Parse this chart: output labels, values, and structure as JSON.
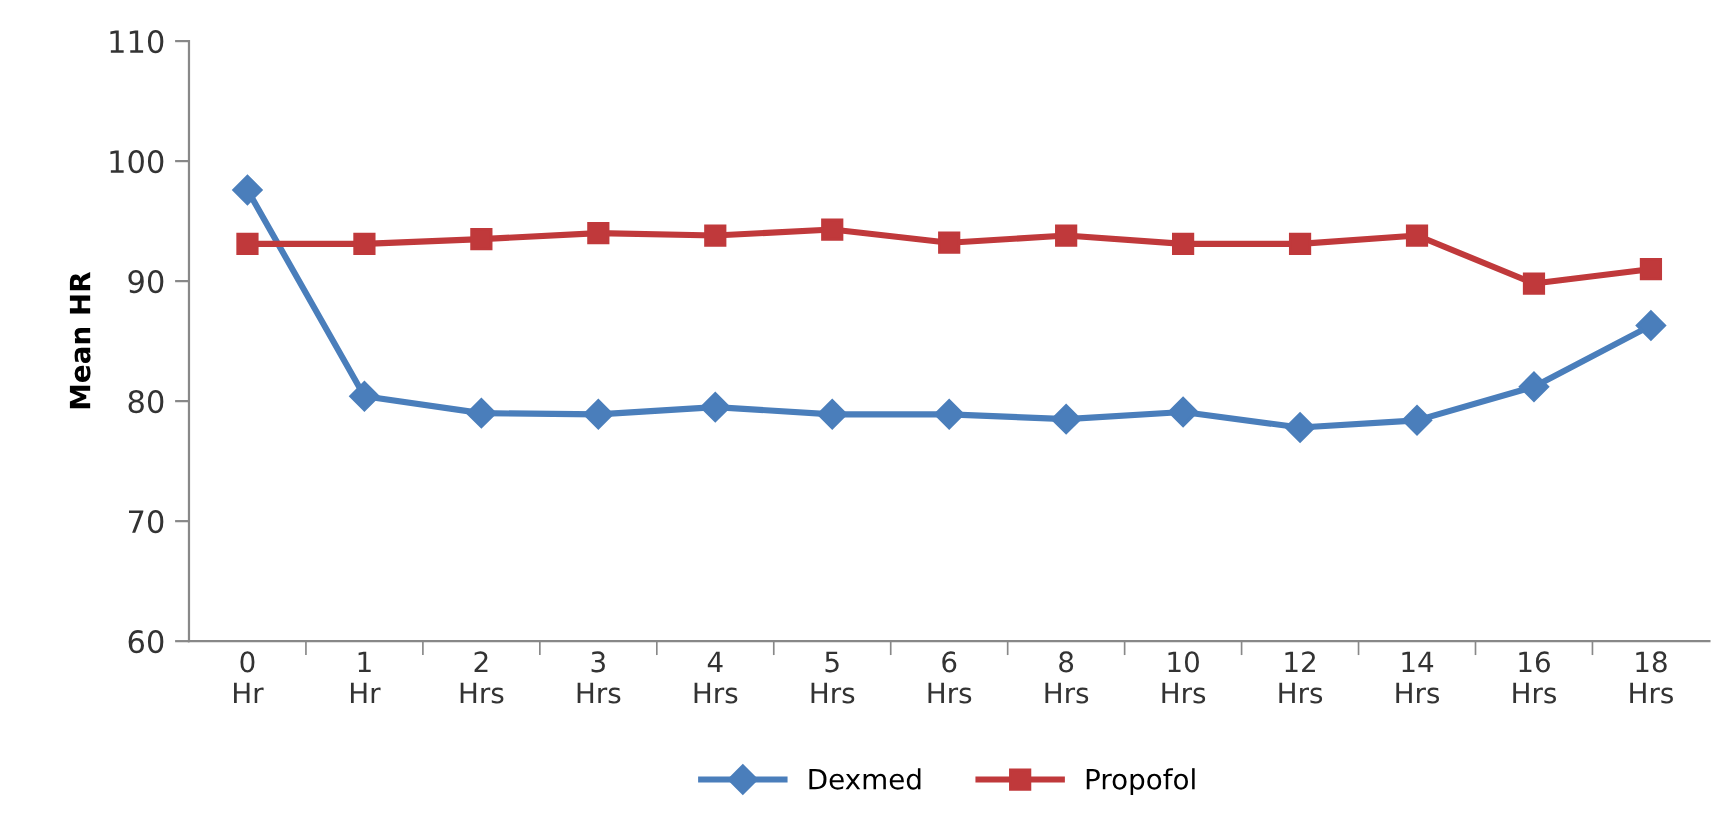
{
  "chart_data": {
    "type": "line",
    "ylabel": "Mean HR",
    "categories": [
      "0\nHr",
      "1\nHr",
      "2\nHrs",
      "3\nHrs",
      "4\nHrs",
      "5\nHrs",
      "6\nHrs",
      "8\nHrs",
      "10\nHrs",
      "12\nHrs",
      "14\nHrs",
      "16\nHrs",
      "18\nHrs"
    ],
    "series": [
      {
        "name": "Dexmed",
        "color": "#4a7ebb",
        "marker": "diamond",
        "values": [
          97.6,
          80.4,
          79.0,
          78.9,
          79.5,
          78.9,
          78.9,
          78.5,
          79.1,
          77.8,
          78.4,
          81.2,
          86.3
        ]
      },
      {
        "name": "Propofol",
        "color": "#c0393b",
        "marker": "square",
        "values": [
          93.1,
          93.1,
          93.5,
          94.0,
          93.8,
          94.3,
          93.2,
          93.8,
          93.1,
          93.1,
          93.8,
          89.8,
          91.0
        ]
      }
    ],
    "ylim": [
      60,
      110
    ],
    "yticks": [
      60,
      70,
      80,
      90,
      100,
      110
    ],
    "grid": false,
    "legend": "bottom",
    "line_style": "solid"
  }
}
